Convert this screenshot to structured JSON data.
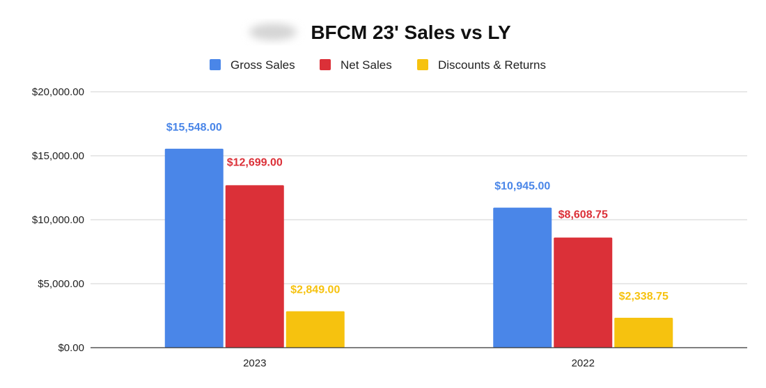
{
  "chart_data": {
    "type": "bar",
    "title": "BFCM 23' Sales vs LY",
    "categories": [
      "2023",
      "2022"
    ],
    "series": [
      {
        "name": "Gross Sales",
        "color": "#4a86e8",
        "values": [
          15548.0,
          10945.0
        ],
        "labels": [
          "$15,548.00",
          "$10,945.00"
        ]
      },
      {
        "name": "Net Sales",
        "color": "#db3038",
        "values": [
          12699.0,
          8608.75
        ],
        "labels": [
          "$12,699.00",
          "$8,608.75"
        ]
      },
      {
        "name": "Discounts & Returns",
        "color": "#f6c20f",
        "values": [
          2849.0,
          2338.75
        ],
        "labels": [
          "$2,849.00",
          "$2,338.75"
        ]
      }
    ],
    "ylim": [
      0,
      20000
    ],
    "yticks": [
      0,
      5000,
      10000,
      15000,
      20000
    ],
    "ytick_labels": [
      "$0.00",
      "$5,000.00",
      "$10,000.00",
      "$15,000.00",
      "$20,000.00"
    ],
    "xlabel": "",
    "ylabel": "",
    "grid": true,
    "legend_position": "top"
  }
}
